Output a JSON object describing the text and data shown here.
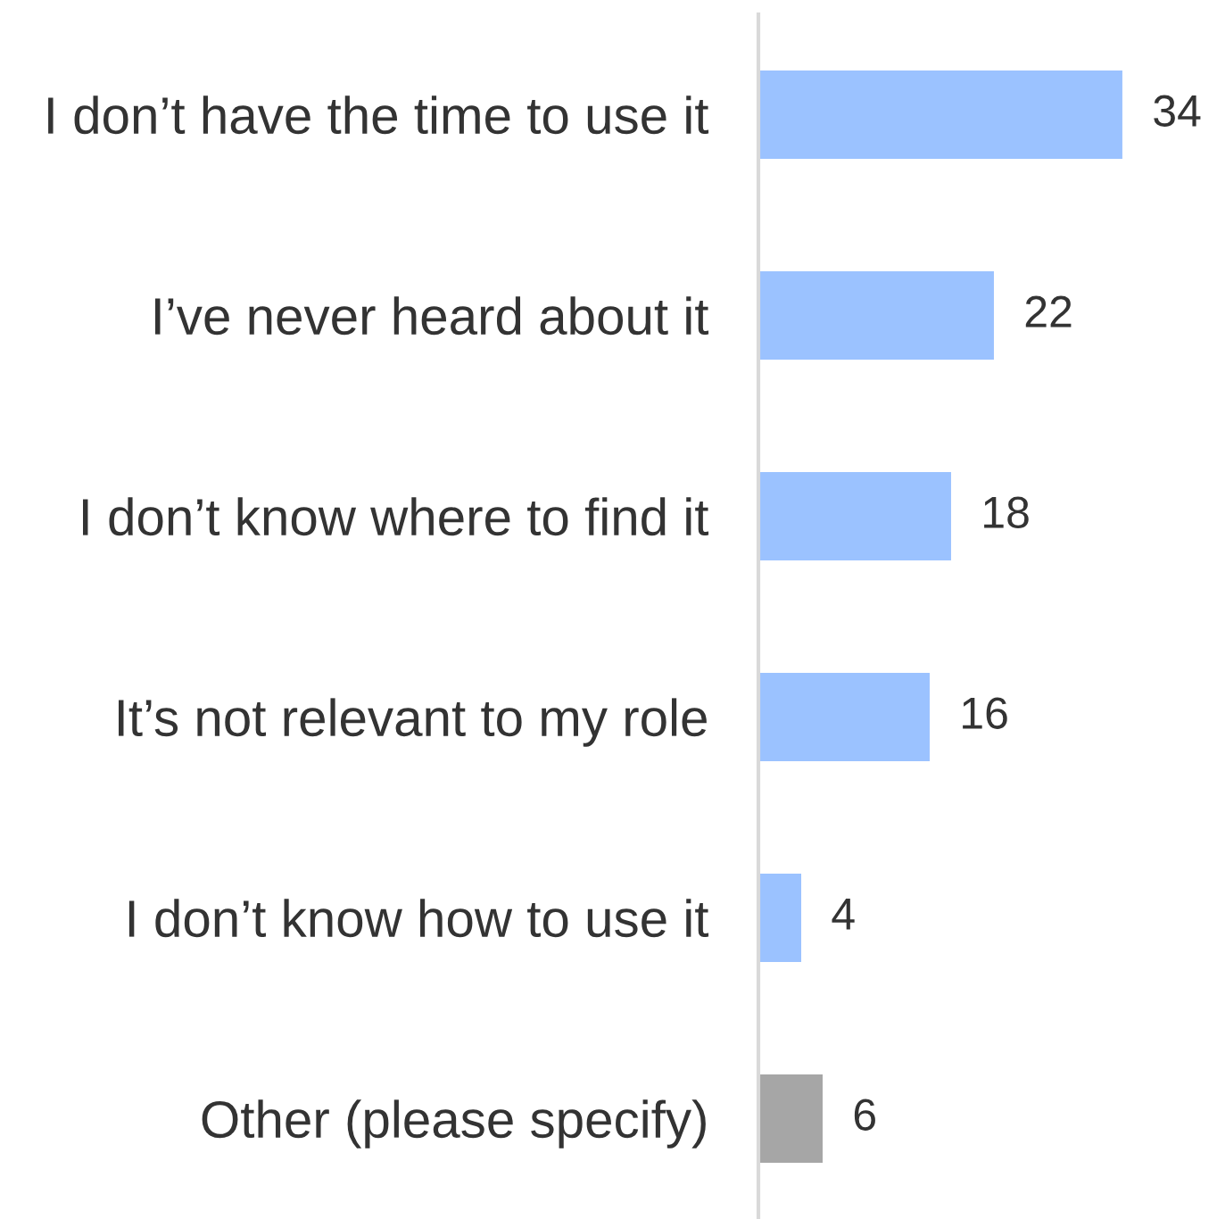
{
  "chart_data": {
    "type": "bar",
    "orientation": "horizontal",
    "categories": [
      "I don’t have the time to use it",
      "I’ve never heard about it",
      "I don’t know where to find it",
      "It’s not relevant to my role",
      "I don’t know how to use it",
      "Other (please specify)"
    ],
    "values": [
      34,
      22,
      18,
      16,
      4,
      6
    ],
    "colors": [
      "#9bc2ff",
      "#9bc2ff",
      "#9bc2ff",
      "#9bc2ff",
      "#9bc2ff",
      "#a6a6a6"
    ],
    "data_labels": true,
    "tick_labels": "y"
  }
}
